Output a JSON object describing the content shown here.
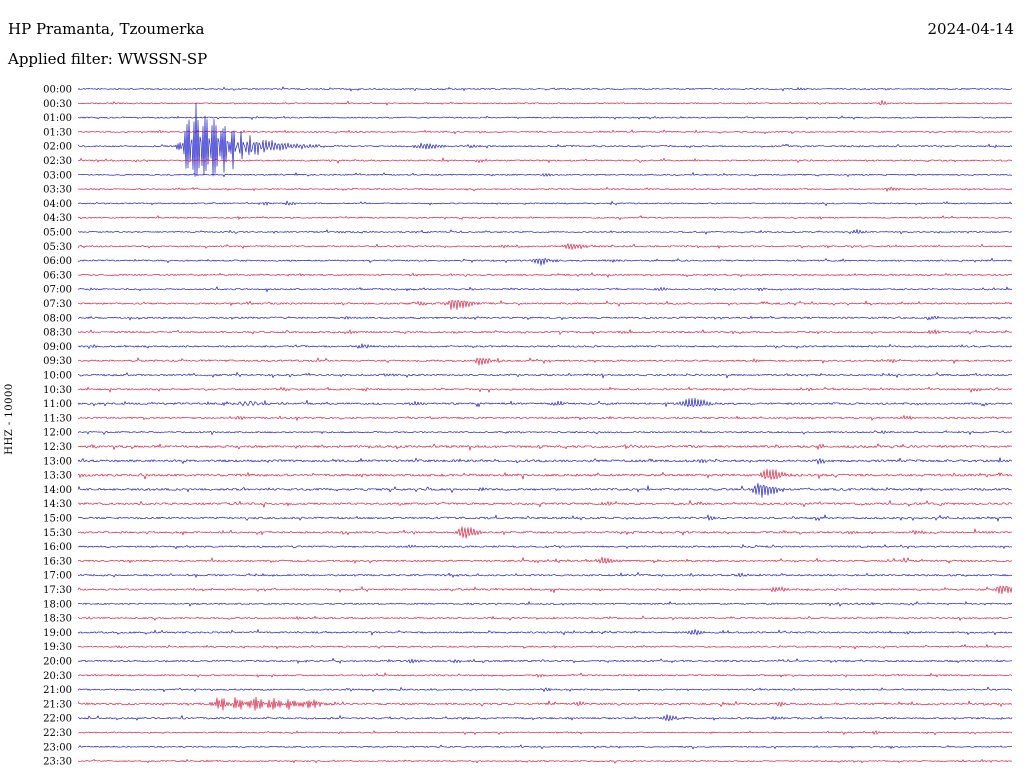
{
  "header": {
    "station": "HP Pramanta, Tzoumerka",
    "date": "2024-04-14",
    "filter_line": "Applied filter: WWSSN-SP"
  },
  "chart_data": {
    "type": "line",
    "subtype": "helicorder-seismogram",
    "title": "HP Pramanta, Tzoumerka",
    "date": "2024-04-14",
    "filter": "WWSSN-SP",
    "scale_label": "HHZ - 10000",
    "minutes_per_row": 30,
    "time_axis": {
      "start": "00:00",
      "end": "23:30",
      "step_minutes": 30
    },
    "legend": "none",
    "grid": false,
    "colors": {
      "blue": "#2020cc",
      "red": "#dd2244"
    },
    "rows": [
      {
        "label": "00:00",
        "color": "blue",
        "noise": 0.6,
        "events": [
          {
            "t": 23.2,
            "amp": 1.5,
            "wl": 3,
            "wr": 6
          }
        ]
      },
      {
        "label": "00:30",
        "color": "red",
        "noise": 0.6,
        "events": [
          {
            "t": 25.8,
            "amp": 2.5,
            "wl": 2,
            "wr": 4
          }
        ]
      },
      {
        "label": "01:00",
        "color": "blue",
        "noise": 0.6,
        "events": []
      },
      {
        "label": "01:30",
        "color": "red",
        "noise": 0.6,
        "events": [
          {
            "t": 2.6,
            "amp": 1.5,
            "wl": 2,
            "wr": 3
          }
        ]
      },
      {
        "label": "02:00",
        "color": "blue",
        "noise": 0.7,
        "events": [
          {
            "t": 3.7,
            "amp": 46,
            "wl": 7,
            "wr": 28,
            "f": 2.8
          },
          {
            "t": 4.9,
            "amp": 9,
            "wl": 12,
            "wr": 45,
            "f": 2.0
          },
          {
            "t": 11.1,
            "amp": 4,
            "wl": 6,
            "wr": 12
          },
          {
            "t": 12.6,
            "amp": 2,
            "wl": 4,
            "wr": 8
          }
        ]
      },
      {
        "label": "02:30",
        "color": "red",
        "noise": 0.7,
        "events": [
          {
            "t": 12.9,
            "amp": 2,
            "wl": 3,
            "wr": 6
          }
        ]
      },
      {
        "label": "03:00",
        "color": "blue",
        "noise": 0.6,
        "events": [
          {
            "t": 15.0,
            "amp": 1.8,
            "wl": 3,
            "wr": 6
          }
        ]
      },
      {
        "label": "03:30",
        "color": "red",
        "noise": 0.6,
        "events": [
          {
            "t": 26.1,
            "amp": 2.5,
            "wl": 3,
            "wr": 6
          },
          {
            "t": 0.5,
            "amp": 1.5,
            "wl": 2,
            "wr": 4
          }
        ]
      },
      {
        "label": "04:00",
        "color": "blue",
        "noise": 0.6,
        "events": [
          {
            "t": 6.0,
            "amp": 2.5,
            "wl": 2,
            "wr": 4
          },
          {
            "t": 6.7,
            "amp": 2.5,
            "wl": 2,
            "wr": 5
          }
        ]
      },
      {
        "label": "04:30",
        "color": "red",
        "noise": 0.6,
        "events": [
          {
            "t": 5.2,
            "amp": 1.8,
            "wl": 2,
            "wr": 4
          },
          {
            "t": 23.8,
            "amp": 1.8,
            "wl": 2,
            "wr": 4
          }
        ]
      },
      {
        "label": "05:00",
        "color": "blue",
        "noise": 0.6,
        "events": [
          {
            "t": 25.0,
            "amp": 2.2,
            "wl": 3,
            "wr": 6
          },
          {
            "t": 8.4,
            "amp": 1.5,
            "wl": 2,
            "wr": 4
          }
        ]
      },
      {
        "label": "05:30",
        "color": "red",
        "noise": 0.7,
        "events": [
          {
            "t": 15.8,
            "amp": 3.5,
            "wl": 6,
            "wr": 14
          },
          {
            "t": 13.7,
            "amp": 1.8,
            "wl": 3,
            "wr": 5
          }
        ]
      },
      {
        "label": "06:00",
        "color": "blue",
        "noise": 0.7,
        "events": [
          {
            "t": 14.8,
            "amp": 4.5,
            "wl": 5,
            "wr": 10
          },
          {
            "t": 17.1,
            "amp": 1.8,
            "wl": 3,
            "wr": 6
          }
        ]
      },
      {
        "label": "06:30",
        "color": "red",
        "noise": 0.7,
        "events": [
          {
            "t": 7.1,
            "amp": 1.5,
            "wl": 3,
            "wr": 5
          }
        ]
      },
      {
        "label": "07:00",
        "color": "blue",
        "noise": 0.7,
        "events": [
          {
            "t": 18.7,
            "amp": 2,
            "wl": 3,
            "wr": 6
          },
          {
            "t": 21.9,
            "amp": 1.8,
            "wl": 3,
            "wr": 5
          },
          {
            "t": 0.4,
            "amp": 1.5,
            "wl": 2,
            "wr": 4
          }
        ]
      },
      {
        "label": "07:30",
        "color": "red",
        "noise": 0.8,
        "events": [
          {
            "t": 12.1,
            "amp": 7,
            "wl": 5,
            "wr": 12
          },
          {
            "t": 11.0,
            "amp": 2.5,
            "wl": 3,
            "wr": 5
          },
          {
            "t": 5.5,
            "amp": 1.5,
            "wl": 3,
            "wr": 5
          }
        ]
      },
      {
        "label": "08:00",
        "color": "blue",
        "noise": 0.8,
        "events": [
          {
            "t": 27.4,
            "amp": 2,
            "wl": 3,
            "wr": 6
          },
          {
            "t": 8.7,
            "amp": 1.5,
            "wl": 3,
            "wr": 5
          }
        ]
      },
      {
        "label": "08:30",
        "color": "red",
        "noise": 0.8,
        "events": [
          {
            "t": 8.7,
            "amp": 2.5,
            "wl": 3,
            "wr": 6
          },
          {
            "t": 27.4,
            "amp": 2.5,
            "wl": 3,
            "wr": 6
          },
          {
            "t": 17.4,
            "amp": 1.8,
            "wl": 3,
            "wr": 5
          }
        ]
      },
      {
        "label": "09:00",
        "color": "blue",
        "noise": 0.8,
        "events": [
          {
            "t": 9.1,
            "amp": 3.5,
            "wl": 4,
            "wr": 8
          },
          {
            "t": 0.5,
            "amp": 1.8,
            "wl": 2,
            "wr": 4
          }
        ]
      },
      {
        "label": "09:30",
        "color": "red",
        "noise": 0.8,
        "events": [
          {
            "t": 12.9,
            "amp": 4.5,
            "wl": 4,
            "wr": 9
          },
          {
            "t": 26.1,
            "amp": 2,
            "wl": 3,
            "wr": 5
          },
          {
            "t": 21.7,
            "amp": 1.8,
            "wl": 3,
            "wr": 5
          }
        ]
      },
      {
        "label": "10:00",
        "color": "blue",
        "noise": 0.8,
        "events": [
          {
            "t": 9.9,
            "amp": 2,
            "wl": 3,
            "wr": 6
          }
        ]
      },
      {
        "label": "10:30",
        "color": "red",
        "noise": 0.8,
        "events": [
          {
            "t": 28.8,
            "amp": 2.5,
            "wl": 3,
            "wr": 6
          },
          {
            "t": 23.5,
            "amp": 1.8,
            "wl": 3,
            "wr": 5
          },
          {
            "t": 6.6,
            "amp": 1.8,
            "wl": 3,
            "wr": 5
          }
        ]
      },
      {
        "label": "11:00",
        "color": "blue",
        "noise": 0.9,
        "events": [
          {
            "t": 19.7,
            "amp": 7,
            "wl": 6,
            "wr": 12
          },
          {
            "t": 10.8,
            "amp": 2.5,
            "wl": 4,
            "wr": 7
          },
          {
            "t": 15.3,
            "amp": 2.5,
            "wl": 4,
            "wr": 7
          },
          {
            "t": 5.5,
            "amp": 2,
            "wl": 12,
            "wr": 18,
            "f": 1.2
          }
        ]
      },
      {
        "label": "11:30",
        "color": "red",
        "noise": 0.8,
        "events": [
          {
            "t": 26.6,
            "amp": 2.5,
            "wl": 3,
            "wr": 6
          },
          {
            "t": 5.2,
            "amp": 1.8,
            "wl": 3,
            "wr": 5
          }
        ]
      },
      {
        "label": "12:00",
        "color": "blue",
        "noise": 0.7,
        "events": [
          {
            "t": 25.9,
            "amp": 1.8,
            "wl": 3,
            "wr": 5
          }
        ]
      },
      {
        "label": "12:30",
        "color": "red",
        "noise": 1.1,
        "events": [
          {
            "t": 23.8,
            "amp": 2.5,
            "wl": 3,
            "wr": 6
          },
          {
            "t": 0.4,
            "amp": 2,
            "wl": 2,
            "wr": 4
          }
        ]
      },
      {
        "label": "13:00",
        "color": "blue",
        "noise": 1.1,
        "events": [
          {
            "t": 23.8,
            "amp": 2.8,
            "wl": 3,
            "wr": 6
          },
          {
            "t": 20.0,
            "amp": 2,
            "wl": 3,
            "wr": 5
          }
        ]
      },
      {
        "label": "13:30",
        "color": "red",
        "noise": 1.1,
        "events": [
          {
            "t": 22.2,
            "amp": 7.5,
            "wl": 5,
            "wr": 10
          },
          {
            "t": 0.1,
            "amp": 2,
            "wl": 1,
            "wr": 3
          }
        ]
      },
      {
        "label": "14:00",
        "color": "blue",
        "noise": 1.0,
        "events": [
          {
            "t": 21.9,
            "amp": 9,
            "wl": 5,
            "wr": 12
          },
          {
            "t": 12.9,
            "amp": 2,
            "wl": 3,
            "wr": 5
          },
          {
            "t": 27.0,
            "amp": 1.8,
            "wl": 3,
            "wr": 5
          }
        ]
      },
      {
        "label": "14:30",
        "color": "red",
        "noise": 1.0,
        "events": [
          {
            "t": 16.9,
            "amp": 2.8,
            "wl": 3,
            "wr": 6
          },
          {
            "t": 20.0,
            "amp": 1.8,
            "wl": 3,
            "wr": 5
          }
        ]
      },
      {
        "label": "15:00",
        "color": "blue",
        "noise": 0.9,
        "events": [
          {
            "t": 20.3,
            "amp": 2,
            "wl": 3,
            "wr": 5
          }
        ]
      },
      {
        "label": "15:30",
        "color": "red",
        "noise": 0.9,
        "events": [
          {
            "t": 12.4,
            "amp": 7.5,
            "wl": 5,
            "wr": 10
          },
          {
            "t": 26.9,
            "amp": 2.5,
            "wl": 3,
            "wr": 6
          },
          {
            "t": 24.8,
            "amp": 1.8,
            "wl": 3,
            "wr": 5
          }
        ]
      },
      {
        "label": "16:00",
        "color": "blue",
        "noise": 0.8,
        "events": [
          {
            "t": 10.7,
            "amp": 1.5,
            "wl": 3,
            "wr": 5
          }
        ]
      },
      {
        "label": "16:30",
        "color": "red",
        "noise": 0.8,
        "events": [
          {
            "t": 16.9,
            "amp": 3.5,
            "wl": 5,
            "wr": 10
          },
          {
            "t": 14.7,
            "amp": 1.8,
            "wl": 3,
            "wr": 5
          }
        ]
      },
      {
        "label": "17:00",
        "color": "blue",
        "noise": 0.8,
        "events": [
          {
            "t": 21.3,
            "amp": 2,
            "wl": 3,
            "wr": 5
          }
        ]
      },
      {
        "label": "17:30",
        "color": "red",
        "noise": 0.8,
        "events": [
          {
            "t": 29.7,
            "amp": 7,
            "wl": 5,
            "wr": 8
          },
          {
            "t": 22.4,
            "amp": 3.5,
            "wl": 4,
            "wr": 8
          }
        ]
      },
      {
        "label": "18:00",
        "color": "blue",
        "noise": 0.7,
        "events": [
          {
            "t": 12.6,
            "amp": 1.5,
            "wl": 3,
            "wr": 5
          }
        ]
      },
      {
        "label": "18:30",
        "color": "red",
        "noise": 0.7,
        "events": [
          {
            "t": 7.1,
            "amp": 1.5,
            "wl": 3,
            "wr": 5
          }
        ]
      },
      {
        "label": "19:00",
        "color": "blue",
        "noise": 0.8,
        "events": [
          {
            "t": 19.8,
            "amp": 3.5,
            "wl": 4,
            "wr": 8
          },
          {
            "t": 26.6,
            "amp": 1.8,
            "wl": 3,
            "wr": 5
          }
        ]
      },
      {
        "label": "19:30",
        "color": "red",
        "noise": 0.7,
        "events": [
          {
            "t": 1.3,
            "amp": 1.5,
            "wl": 2,
            "wr": 4
          }
        ]
      },
      {
        "label": "20:00",
        "color": "blue",
        "noise": 0.8,
        "events": [
          {
            "t": 10.7,
            "amp": 2.5,
            "wl": 3,
            "wr": 6
          },
          {
            "t": 12.1,
            "amp": 2,
            "wl": 3,
            "wr": 5
          }
        ]
      },
      {
        "label": "20:30",
        "color": "red",
        "noise": 0.7,
        "events": [
          {
            "t": 14.8,
            "amp": 1.8,
            "wl": 3,
            "wr": 5
          },
          {
            "t": 26.4,
            "amp": 1.5,
            "wl": 3,
            "wr": 5
          }
        ]
      },
      {
        "label": "21:00",
        "color": "blue",
        "noise": 0.7,
        "events": [
          {
            "t": 15.0,
            "amp": 2,
            "wl": 3,
            "wr": 5
          },
          {
            "t": 8.7,
            "amp": 1.5,
            "wl": 3,
            "wr": 5
          }
        ]
      },
      {
        "label": "21:30",
        "color": "red",
        "noise": 0.9,
        "events": [
          {
            "t": 4.6,
            "amp": 8,
            "wl": 5,
            "wr": 6,
            "f": 2.6
          },
          {
            "t": 5.1,
            "amp": 9,
            "wl": 5,
            "wr": 6,
            "f": 2.6
          },
          {
            "t": 5.7,
            "amp": 8,
            "wl": 5,
            "wr": 7,
            "f": 2.6
          },
          {
            "t": 6.2,
            "amp": 7,
            "wl": 5,
            "wr": 8,
            "f": 2.6
          },
          {
            "t": 6.8,
            "amp": 6,
            "wl": 5,
            "wr": 9,
            "f": 2.6
          },
          {
            "t": 7.4,
            "amp": 4.5,
            "wl": 5,
            "wr": 12,
            "f": 2.6
          },
          {
            "t": 16.0,
            "amp": 2.5,
            "wl": 3,
            "wr": 6
          },
          {
            "t": 22.5,
            "amp": 2.5,
            "wl": 3,
            "wr": 6
          }
        ]
      },
      {
        "label": "22:00",
        "color": "blue",
        "noise": 0.8,
        "events": [
          {
            "t": 18.9,
            "amp": 3.5,
            "wl": 4,
            "wr": 8
          },
          {
            "t": 15.8,
            "amp": 1.8,
            "wl": 3,
            "wr": 5
          },
          {
            "t": 22.4,
            "amp": 2,
            "wl": 3,
            "wr": 5
          }
        ]
      },
      {
        "label": "22:30",
        "color": "red",
        "noise": 0.6,
        "events": [
          {
            "t": 25.6,
            "amp": 1.8,
            "wl": 2,
            "wr": 4
          }
        ]
      },
      {
        "label": "23:00",
        "color": "blue",
        "noise": 0.6,
        "events": []
      },
      {
        "label": "23:30",
        "color": "red",
        "noise": 0.6,
        "events": []
      }
    ]
  }
}
